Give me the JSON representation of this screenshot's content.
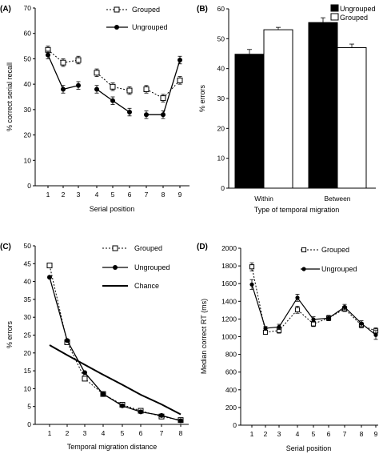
{
  "chart_data": [
    {
      "panel_label": "(A)",
      "type": "line",
      "x": [
        1,
        2,
        3,
        4,
        5,
        6,
        7,
        8,
        9
      ],
      "xlabel": "Serial position",
      "ylabel": "% correct serial recall",
      "ylim": [
        0,
        70
      ],
      "yticks": [
        0,
        10,
        20,
        30,
        40,
        50,
        60,
        70
      ],
      "groups": [
        [
          1,
          2,
          3
        ],
        [
          4,
          5,
          6
        ],
        [
          7,
          8,
          9
        ]
      ],
      "legend_position": "top-right",
      "series": [
        {
          "name": "Grouped",
          "style": "dotted-open-square",
          "values": [
            53.5,
            48.5,
            49.5,
            44.5,
            39,
            37.5,
            38,
            34.5,
            41.5
          ],
          "errors": [
            1.5,
            1.5,
            1.5,
            1.5,
            1.5,
            1.5,
            1.5,
            1.5,
            1.5
          ]
        },
        {
          "name": "Ungrouped",
          "style": "solid-filled-circle",
          "values": [
            51.5,
            38,
            39.5,
            38,
            33.5,
            29,
            28,
            28,
            49.5
          ],
          "errors": [
            1.5,
            1.5,
            1.5,
            1.5,
            1.5,
            1.5,
            1.5,
            1.5,
            1.5
          ]
        }
      ]
    },
    {
      "panel_label": "(B)",
      "type": "bar",
      "categories": [
        "Within",
        "Between"
      ],
      "xlabel": "Type of temporal migration",
      "ylabel": "% errors",
      "ylim": [
        0,
        60
      ],
      "yticks": [
        0,
        10,
        20,
        30,
        40,
        50,
        60
      ],
      "legend_position": "top-right",
      "series": [
        {
          "name": "Ungrouped",
          "color": "#000000",
          "values": [
            44.8,
            55.4
          ],
          "errors": [
            1.6,
            1.6
          ]
        },
        {
          "name": "Grouped",
          "color": "#ffffff",
          "values": [
            53.0,
            47.0
          ],
          "errors": [
            0.8,
            1.2
          ]
        }
      ]
    },
    {
      "panel_label": "(C)",
      "type": "line",
      "x": [
        1,
        2,
        3,
        4,
        5,
        6,
        7,
        8
      ],
      "xlabel": "Temporal migration distance",
      "ylabel": "% errors",
      "ylim": [
        0,
        50
      ],
      "yticks": [
        0,
        5,
        10,
        15,
        20,
        25,
        30,
        35,
        40,
        45,
        50
      ],
      "legend_position": "top-right",
      "series": [
        {
          "name": "Grouped",
          "style": "dotted-open-square",
          "values": [
            44.5,
            23,
            12.8,
            8.5,
            5.5,
            3.8,
            2.2,
            1.2
          ]
        },
        {
          "name": "Ungrouped",
          "style": "solid-filled-circle",
          "values": [
            41.2,
            23.5,
            14.5,
            8.5,
            5.2,
            3.5,
            2.5,
            1.0
          ]
        },
        {
          "name": "Chance",
          "style": "thick-line",
          "values": [
            22.2,
            19.4,
            16.7,
            13.9,
            11.1,
            8.3,
            5.6,
            2.8
          ]
        }
      ]
    },
    {
      "panel_label": "(D)",
      "type": "line",
      "x": [
        1,
        2,
        3,
        4,
        5,
        6,
        7,
        8,
        9
      ],
      "xlabel": "Serial position",
      "ylabel": "Median correct RT (ms)",
      "ylim": [
        0,
        2000
      ],
      "yticks": [
        0,
        200,
        400,
        600,
        800,
        1000,
        1200,
        1400,
        1600,
        1800,
        2000
      ],
      "legend_position": "top-right",
      "series": [
        {
          "name": "Grouped",
          "style": "dotted-open-square",
          "values": [
            1790,
            1050,
            1070,
            1305,
            1145,
            1210,
            1315,
            1130,
            1065
          ],
          "errors": [
            45,
            20,
            30,
            40,
            30,
            30,
            30,
            30,
            35
          ]
        },
        {
          "name": "Ungrouped",
          "style": "solid-filled-circle",
          "values": [
            1590,
            1095,
            1110,
            1440,
            1195,
            1210,
            1335,
            1150,
            1020
          ],
          "errors": [
            55,
            20,
            30,
            40,
            30,
            30,
            30,
            30,
            50
          ]
        }
      ]
    }
  ]
}
